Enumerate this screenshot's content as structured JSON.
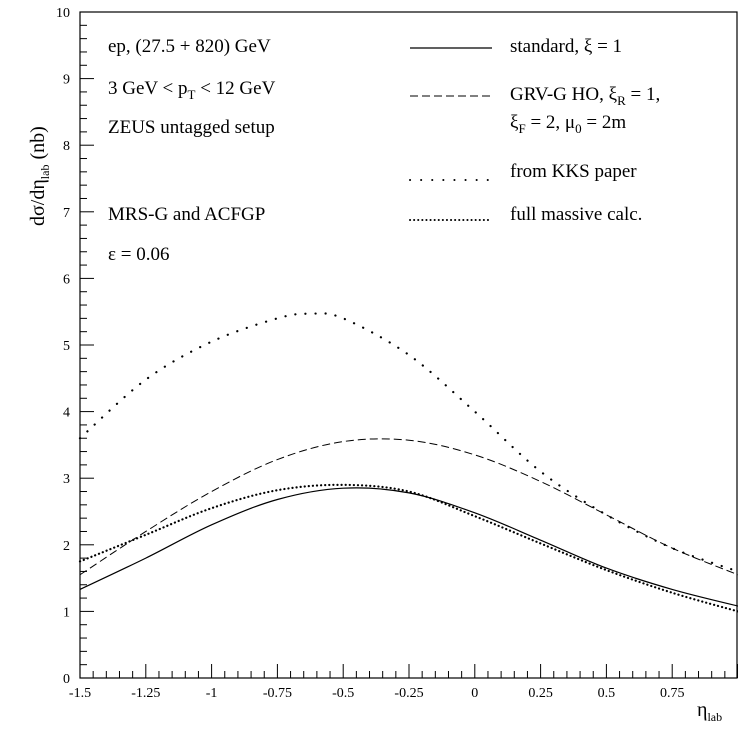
{
  "chart_data": {
    "type": "line",
    "title": "",
    "xlabel": "η",
    "xlabel_sub": "lab",
    "ylabel_prefix": "dσ/dη",
    "ylabel_sub": "lab",
    "ylabel_suffix": " (nb)",
    "xlim": [
      -1.5,
      1.0
    ],
    "ylim": [
      0,
      10
    ],
    "x_ticks": [
      -1.5,
      -1.25,
      -1.0,
      -0.75,
      -0.5,
      -0.25,
      0,
      0.25,
      0.5,
      0.75
    ],
    "x_tick_labels": [
      "-1.5",
      "-1.25",
      "-1",
      "-0.75",
      "-0.5",
      "-0.25",
      "0",
      "0.25",
      "0.5",
      "0.75"
    ],
    "y_ticks": [
      0,
      1,
      2,
      3,
      4,
      5,
      6,
      7,
      8,
      9,
      10
    ],
    "y_tick_labels": [
      "0",
      "1",
      "2",
      "3",
      "4",
      "5",
      "6",
      "7",
      "8",
      "9",
      "10"
    ],
    "grid": false,
    "legend_position": "top-right",
    "annotations": [
      "ep,  (27.5 + 820) GeV",
      "3 GeV < p_T < 12 GeV",
      "ZEUS untagged setup",
      "MRS-G and ACFGP",
      "ε = 0.06"
    ],
    "series": [
      {
        "name": "standard, ξ = 1",
        "style": "solid",
        "x": [
          -1.5,
          -1.25,
          -1.0,
          -0.75,
          -0.5,
          -0.25,
          0.0,
          0.25,
          0.5,
          0.75,
          1.0
        ],
        "y": [
          1.33,
          1.8,
          2.3,
          2.68,
          2.85,
          2.78,
          2.48,
          2.07,
          1.65,
          1.33,
          1.08
        ]
      },
      {
        "name": "GRV-G HO, ξ_R = 1, ξ_F = 2, μ_0 = 2m",
        "style": "dashed",
        "x": [
          -1.5,
          -1.25,
          -1.0,
          -0.75,
          -0.5,
          -0.25,
          0.0,
          0.25,
          0.5,
          0.75,
          1.0
        ],
        "y": [
          1.55,
          2.2,
          2.8,
          3.28,
          3.55,
          3.57,
          3.35,
          2.95,
          2.45,
          1.95,
          1.55
        ]
      },
      {
        "name": "from KKS paper",
        "style": "dotted-sparse",
        "x": [
          -1.5,
          -1.25,
          -1.0,
          -0.75,
          -0.625,
          -0.5,
          -0.25,
          0.0,
          0.25,
          0.5,
          0.75,
          1.0
        ],
        "y": [
          3.6,
          4.48,
          5.05,
          5.4,
          5.47,
          5.4,
          4.85,
          4.0,
          3.1,
          2.45,
          1.95,
          1.6
        ]
      },
      {
        "name": "full massive calc.",
        "style": "dotted-dense",
        "x": [
          -1.5,
          -1.25,
          -1.0,
          -0.75,
          -0.5,
          -0.25,
          0.0,
          0.25,
          0.5,
          0.75,
          1.0
        ],
        "y": [
          1.75,
          2.15,
          2.55,
          2.82,
          2.9,
          2.8,
          2.43,
          2.02,
          1.62,
          1.28,
          1.0
        ]
      }
    ]
  }
}
